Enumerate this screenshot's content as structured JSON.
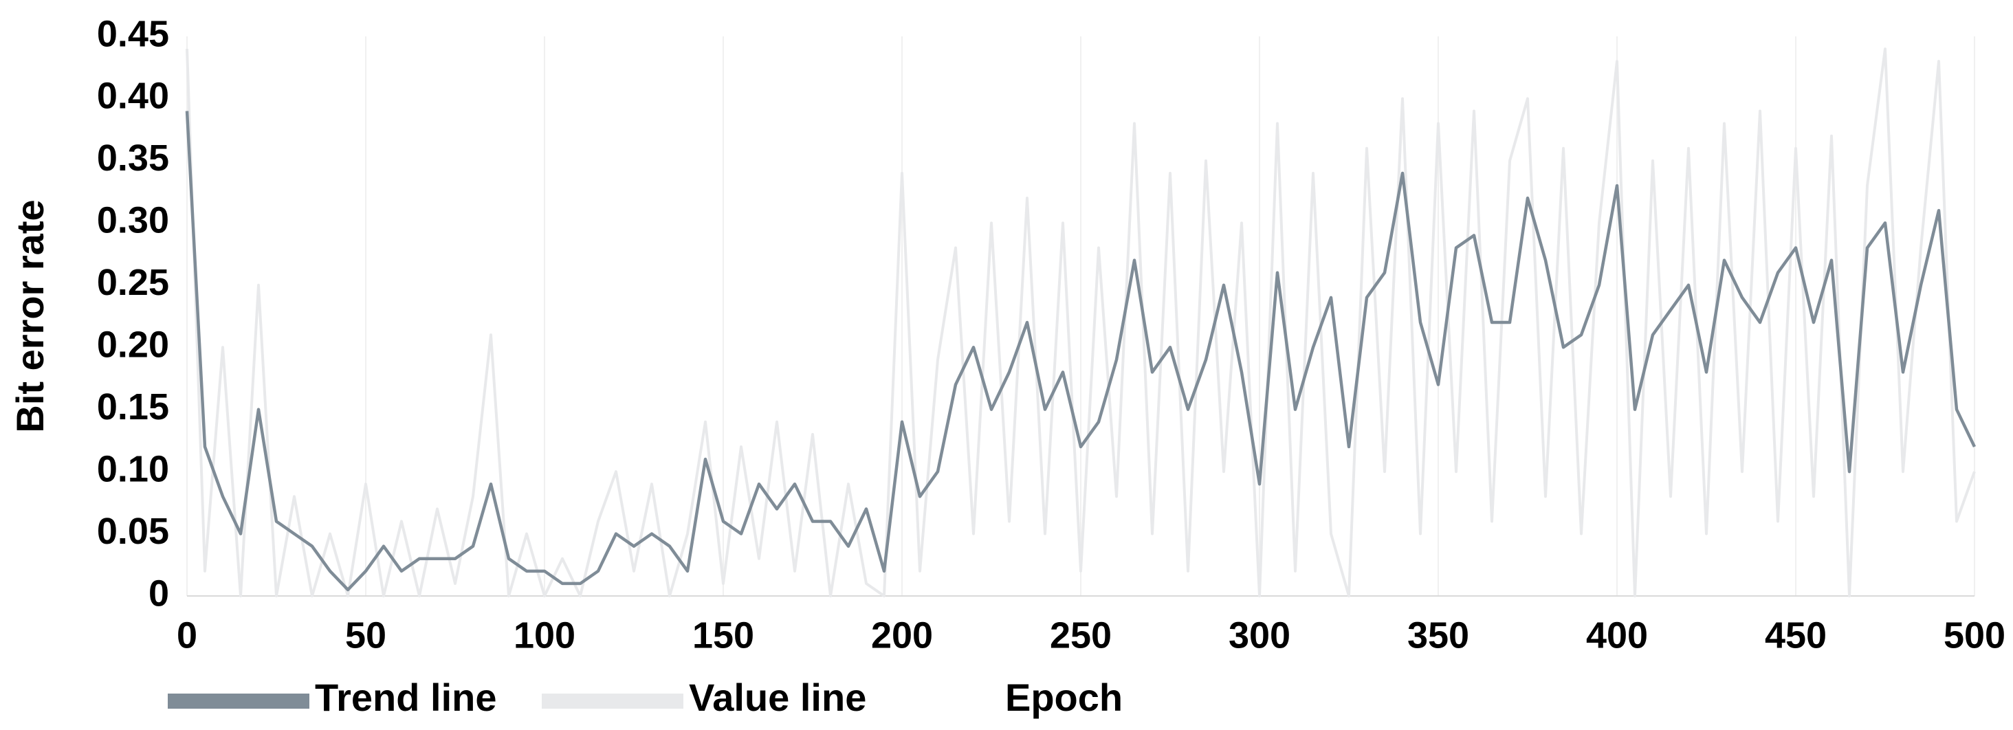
{
  "chart_data": {
    "type": "line",
    "xlabel": "Epoch",
    "ylabel": "Bit error rate",
    "x": [
      0,
      5,
      10,
      15,
      20,
      25,
      30,
      35,
      40,
      45,
      50,
      55,
      60,
      65,
      70,
      75,
      80,
      85,
      90,
      95,
      100,
      105,
      110,
      115,
      120,
      125,
      130,
      135,
      140,
      145,
      150,
      155,
      160,
      165,
      170,
      175,
      180,
      185,
      190,
      195,
      200,
      205,
      210,
      215,
      220,
      225,
      230,
      235,
      240,
      245,
      250,
      255,
      260,
      265,
      270,
      275,
      280,
      285,
      290,
      295,
      300,
      305,
      310,
      315,
      320,
      325,
      330,
      335,
      340,
      345,
      350,
      355,
      360,
      365,
      370,
      375,
      380,
      385,
      390,
      395,
      400,
      405,
      410,
      415,
      420,
      425,
      430,
      435,
      440,
      445,
      450,
      455,
      460,
      465,
      470,
      475,
      480,
      485,
      490,
      495,
      500
    ],
    "series": [
      {
        "name": "Trend line",
        "color": "#7f8c97",
        "values": [
          0.39,
          0.12,
          0.08,
          0.05,
          0.15,
          0.06,
          0.05,
          0.04,
          0.02,
          0.005,
          0.02,
          0.04,
          0.02,
          0.03,
          0.03,
          0.03,
          0.04,
          0.09,
          0.03,
          0.02,
          0.02,
          0.01,
          0.01,
          0.02,
          0.05,
          0.04,
          0.05,
          0.04,
          0.02,
          0.11,
          0.06,
          0.05,
          0.09,
          0.07,
          0.09,
          0.06,
          0.06,
          0.04,
          0.07,
          0.02,
          0.14,
          0.08,
          0.1,
          0.17,
          0.2,
          0.15,
          0.18,
          0.22,
          0.15,
          0.18,
          0.12,
          0.14,
          0.19,
          0.27,
          0.18,
          0.2,
          0.15,
          0.19,
          0.25,
          0.18,
          0.09,
          0.26,
          0.15,
          0.2,
          0.24,
          0.12,
          0.24,
          0.26,
          0.34,
          0.22,
          0.17,
          0.28,
          0.29,
          0.22,
          0.22,
          0.32,
          0.27,
          0.2,
          0.21,
          0.25,
          0.33,
          0.15,
          0.21,
          0.23,
          0.25,
          0.18,
          0.27,
          0.24,
          0.22,
          0.26,
          0.28,
          0.22,
          0.27,
          0.1,
          0.28,
          0.3,
          0.18,
          0.25,
          0.31,
          0.15,
          0.12
        ]
      },
      {
        "name": "Value line",
        "color": "#e8e9eb",
        "values": [
          0.44,
          0.02,
          0.2,
          0.0,
          0.25,
          0.0,
          0.08,
          0.0,
          0.05,
          0.0,
          0.09,
          0.0,
          0.06,
          0.0,
          0.07,
          0.01,
          0.08,
          0.21,
          0.0,
          0.05,
          0.0,
          0.03,
          0.0,
          0.06,
          0.1,
          0.02,
          0.09,
          0.0,
          0.05,
          0.14,
          0.01,
          0.12,
          0.03,
          0.14,
          0.02,
          0.13,
          0.0,
          0.09,
          0.01,
          0.0,
          0.34,
          0.02,
          0.19,
          0.28,
          0.05,
          0.3,
          0.06,
          0.32,
          0.05,
          0.3,
          0.02,
          0.28,
          0.08,
          0.38,
          0.05,
          0.34,
          0.02,
          0.35,
          0.1,
          0.3,
          0.0,
          0.38,
          0.02,
          0.34,
          0.05,
          0.0,
          0.36,
          0.1,
          0.4,
          0.05,
          0.38,
          0.1,
          0.39,
          0.06,
          0.35,
          0.4,
          0.08,
          0.36,
          0.05,
          0.3,
          0.43,
          0.0,
          0.35,
          0.08,
          0.36,
          0.05,
          0.38,
          0.1,
          0.39,
          0.06,
          0.36,
          0.08,
          0.37,
          0.0,
          0.33,
          0.44,
          0.1,
          0.28,
          0.43,
          0.06,
          0.1
        ]
      }
    ],
    "xlim": [
      0,
      500
    ],
    "xticks": [
      0,
      50,
      100,
      150,
      200,
      250,
      300,
      350,
      400,
      450,
      500
    ],
    "ylim": [
      0,
      0.45
    ],
    "yticks": [
      0,
      0.05,
      {
        "value": 0.1,
        "label": "0.10"
      },
      0.15,
      {
        "value": 0.2,
        "label": "0.20"
      },
      0.25,
      {
        "value": 0.3,
        "label": "0.30"
      },
      0.35,
      {
        "value": 0.4,
        "label": "0.40"
      },
      0.45
    ],
    "grid": "x"
  }
}
